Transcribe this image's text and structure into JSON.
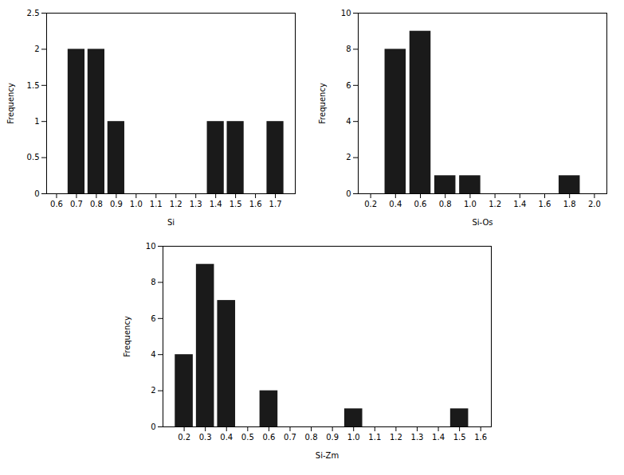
{
  "chart_data": [
    {
      "type": "bar",
      "xlabel": "Si",
      "ylabel": "Frequency",
      "x": [
        0.7,
        0.8,
        0.9,
        1.4,
        1.5,
        1.7
      ],
      "values": [
        2,
        2,
        1,
        1,
        1,
        1
      ],
      "color": "#1a1a1a",
      "xlim": [
        0.55,
        1.8
      ],
      "ylim": [
        0,
        2.5
      ],
      "xticks": [
        0.6,
        0.7,
        0.8,
        0.9,
        {
          "value": 1,
          "label": "1.0"
        },
        1.1,
        1.2,
        1.3,
        1.4,
        1.5,
        1.6,
        1.7
      ],
      "yticks": [
        0,
        0.5,
        1,
        1.5,
        2,
        2.5
      ],
      "grid": false
    },
    {
      "type": "bar",
      "xlabel": "Si-Os",
      "ylabel": "Frequency",
      "x": [
        0.4,
        0.6,
        0.8,
        1.0,
        1.8
      ],
      "values": [
        8,
        9,
        1,
        1,
        1
      ],
      "color": "#1a1a1a",
      "xlim": [
        0.1,
        2.1
      ],
      "ylim": [
        0,
        10
      ],
      "xticks": [
        0.2,
        0.4,
        0.6,
        0.8,
        {
          "value": 1,
          "label": "1.0"
        },
        1.2,
        1.4,
        1.6,
        1.8,
        {
          "value": 2,
          "label": "2.0"
        }
      ],
      "yticks": [
        0,
        2,
        4,
        6,
        8,
        10
      ],
      "grid": false
    },
    {
      "type": "bar",
      "xlabel": "Si-Zm",
      "ylabel": "Frequency",
      "x": [
        0.2,
        0.3,
        0.4,
        0.6,
        1.0,
        1.5
      ],
      "values": [
        4,
        9,
        7,
        2,
        1,
        1
      ],
      "color": "#1a1a1a",
      "xlim": [
        0.1,
        1.65
      ],
      "ylim": [
        0,
        10
      ],
      "xticks": [
        0.2,
        0.3,
        0.4,
        0.5,
        0.6,
        0.7,
        0.8,
        0.9,
        {
          "value": 1,
          "label": "1.0"
        },
        1.1,
        1.2,
        1.3,
        1.4,
        1.5,
        1.6
      ],
      "yticks": [
        0,
        2,
        4,
        6,
        8,
        10
      ],
      "grid": false
    }
  ]
}
